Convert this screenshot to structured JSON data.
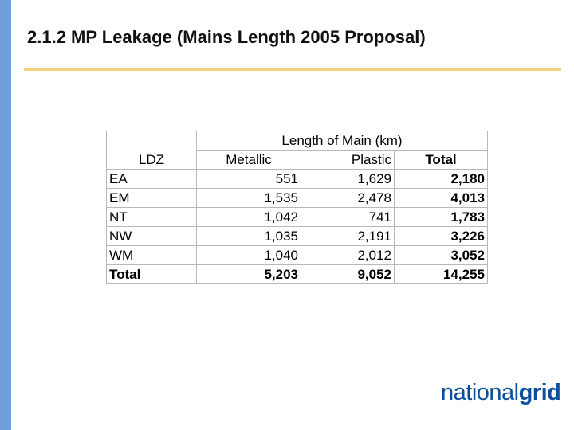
{
  "slide": {
    "title": "2.1.2 MP Leakage (Mains Length 2005 Proposal)"
  },
  "colors": {
    "left_bar": "#6fa0dc",
    "title_rule": "#f3d27a",
    "brand_blue": "#0d4f9c"
  },
  "table": {
    "group_header": "Length of Main (km)",
    "col_headers": {
      "ldz": "LDZ",
      "metallic": "Metallic",
      "plastic": "Plastic",
      "total": "Total"
    },
    "rows": [
      {
        "ldz": "EA",
        "metallic": "551",
        "plastic": "1,629",
        "total": "2,180"
      },
      {
        "ldz": "EM",
        "metallic": "1,535",
        "plastic": "2,478",
        "total": "4,013"
      },
      {
        "ldz": "NT",
        "metallic": "1,042",
        "plastic": "741",
        "total": "1,783"
      },
      {
        "ldz": "NW",
        "metallic": "1,035",
        "plastic": "2,191",
        "total": "3,226"
      },
      {
        "ldz": "WM",
        "metallic": "1,040",
        "plastic": "2,012",
        "total": "3,052"
      },
      {
        "ldz": "Total",
        "metallic": "5,203",
        "plastic": "9,052",
        "total": "14,255"
      }
    ]
  },
  "logo": {
    "part1": "national",
    "part2": "grid"
  }
}
